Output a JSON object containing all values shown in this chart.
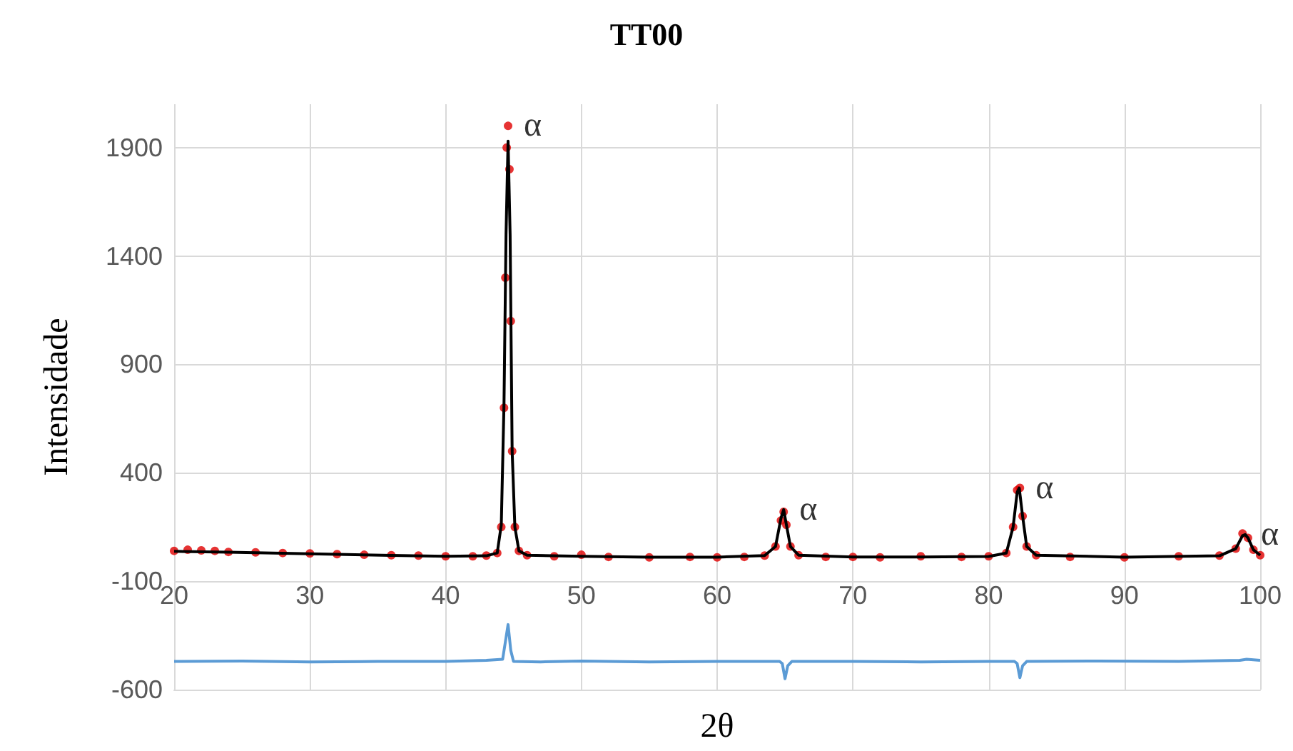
{
  "chart_data": {
    "type": "line",
    "title": "TT00",
    "xlabel": "2θ",
    "ylabel": "Intensidade",
    "xlim": [
      20,
      100
    ],
    "xticks": [
      20,
      30,
      40,
      50,
      60,
      70,
      80,
      90,
      100
    ],
    "ylim": [
      -600,
      2100
    ],
    "yticks": [
      -600,
      -100,
      400,
      900,
      1400,
      1900
    ],
    "grid": true,
    "series": [
      {
        "type": "scatter",
        "color": "#e00000",
        "x": [
          20,
          21,
          22,
          23,
          24,
          26,
          28,
          30,
          32,
          34,
          36,
          38,
          40,
          42,
          43,
          43.8,
          44.1,
          44.3,
          44.4,
          44.5,
          44.6,
          44.7,
          44.8,
          44.9,
          45.1,
          45.4,
          46,
          48,
          50,
          52,
          55,
          58,
          60,
          62,
          63.5,
          64.3,
          64.7,
          64.9,
          65.1,
          65.4,
          66,
          68,
          70,
          72,
          75,
          78,
          80,
          81.3,
          81.8,
          82.1,
          82.3,
          82.5,
          82.8,
          83.5,
          86,
          90,
          94,
          97,
          98.2,
          98.7,
          99.1,
          99.5,
          100
        ],
        "values": [
          40,
          45,
          42,
          40,
          35,
          33,
          30,
          28,
          25,
          22,
          20,
          18,
          15,
          15,
          18,
          30,
          150,
          700,
          1300,
          1900,
          2000,
          1800,
          1100,
          500,
          150,
          40,
          20,
          15,
          22,
          12,
          10,
          12,
          10,
          12,
          18,
          60,
          180,
          220,
          160,
          60,
          20,
          12,
          12,
          10,
          15,
          12,
          15,
          30,
          150,
          320,
          330,
          200,
          60,
          20,
          12,
          10,
          15,
          18,
          50,
          120,
          100,
          45,
          20
        ]
      },
      {
        "color": "#000000",
        "x": [
          20,
          24,
          28,
          32,
          36,
          40,
          43,
          43.8,
          44.1,
          44.3,
          44.45,
          44.6,
          44.75,
          44.9,
          45.1,
          45.4,
          46,
          50,
          55,
          60,
          63.5,
          64.3,
          64.7,
          64.9,
          65.1,
          65.4,
          66,
          70,
          75,
          80,
          81.3,
          81.8,
          82.1,
          82.25,
          82.5,
          82.8,
          83.5,
          90,
          97,
          98.2,
          98.7,
          98.9,
          99.1,
          99.5,
          100
        ],
        "values": [
          38,
          34,
          29,
          24,
          19,
          15,
          17,
          30,
          160,
          720,
          1500,
          1930,
          1500,
          500,
          150,
          40,
          20,
          15,
          11,
          11,
          18,
          60,
          190,
          230,
          160,
          60,
          20,
          12,
          12,
          14,
          30,
          150,
          310,
          330,
          200,
          60,
          20,
          11,
          17,
          50,
          110,
          115,
          100,
          45,
          20
        ]
      },
      {
        "color": "#5b9bd5",
        "x": [
          20,
          25,
          30,
          35,
          40,
          43,
          44.2,
          44.4,
          44.6,
          44.8,
          45,
          47,
          50,
          55,
          60,
          64.6,
          64.8,
          65,
          65.2,
          65.5,
          70,
          75,
          80,
          81.9,
          82.1,
          82.3,
          82.5,
          82.8,
          88,
          94,
          98.5,
          99,
          100
        ],
        "values": [
          -470,
          -468,
          -472,
          -470,
          -470,
          -465,
          -460,
          -380,
          -300,
          -420,
          -470,
          -472,
          -468,
          -472,
          -470,
          -470,
          -480,
          -550,
          -490,
          -470,
          -470,
          -472,
          -470,
          -470,
          -480,
          -545,
          -490,
          -470,
          -468,
          -470,
          -465,
          -460,
          -465
        ]
      }
    ],
    "annotations": [
      {
        "text": "α",
        "x": 44.6,
        "y": 2000
      },
      {
        "text": "α",
        "x": 64.9,
        "y": 230
      },
      {
        "text": "α",
        "x": 82.3,
        "y": 330
      },
      {
        "text": "α",
        "x": 98.9,
        "y": 115
      }
    ]
  }
}
